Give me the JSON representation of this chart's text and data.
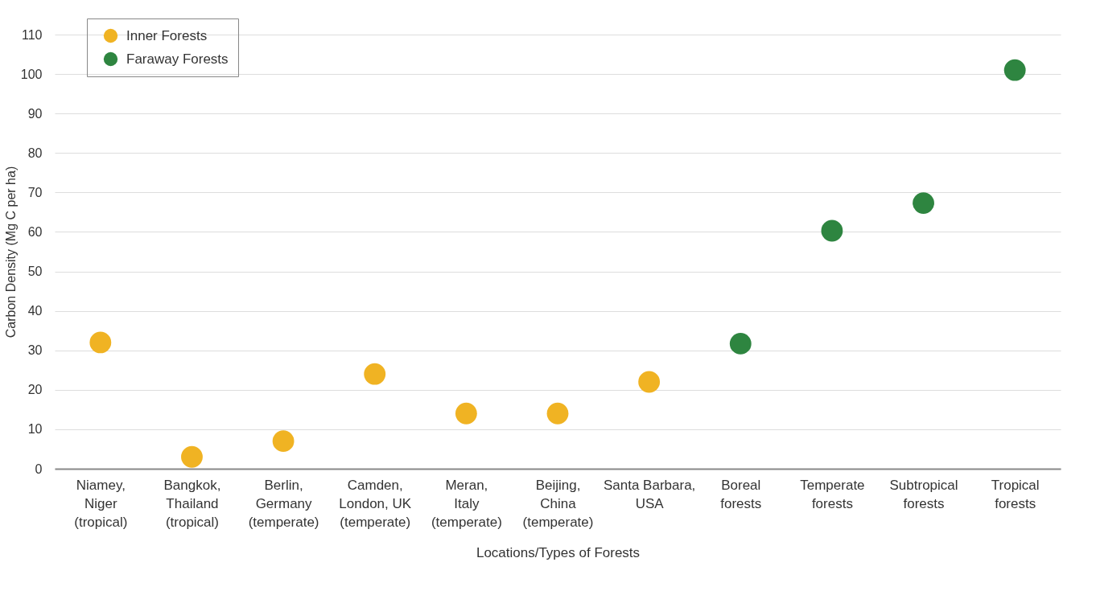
{
  "chart_data": {
    "type": "scatter",
    "xlabel": "Locations/Types of Forests",
    "ylabel": "Carbon Density (Mg C per ha)",
    "categories": [
      "Niamey,\nNiger\n(tropical)",
      "Bangkok,\nThailand\n(tropical)",
      "Berlin,\nGermany\n(temperate)",
      "Camden,\nLondon, UK\n(temperate)",
      "Meran,\nItaly\n(temperate)",
      "Beijing,\nChina\n(temperate)",
      "Santa Barbara,\nUSA",
      "Boreal\nforests",
      "Temperate\nforests",
      "Subtropical\nforests",
      "Tropical\nforests"
    ],
    "series": [
      {
        "name": "Inner Forests",
        "color": "#f0b323",
        "values": [
          32,
          3,
          7,
          24,
          14,
          14,
          22,
          null,
          null,
          null,
          null
        ]
      },
      {
        "name": "Faraway Forests",
        "color": "#2e8540",
        "values": [
          null,
          null,
          null,
          null,
          null,
          null,
          null,
          31.7,
          60.3,
          67.3,
          101
        ]
      }
    ],
    "ylim": [
      0,
      110
    ],
    "yticks": [
      0,
      10,
      20,
      30,
      40,
      50,
      60,
      70,
      80,
      90,
      100,
      110
    ],
    "grid": "y",
    "legend": "top left",
    "marker": "circle"
  }
}
